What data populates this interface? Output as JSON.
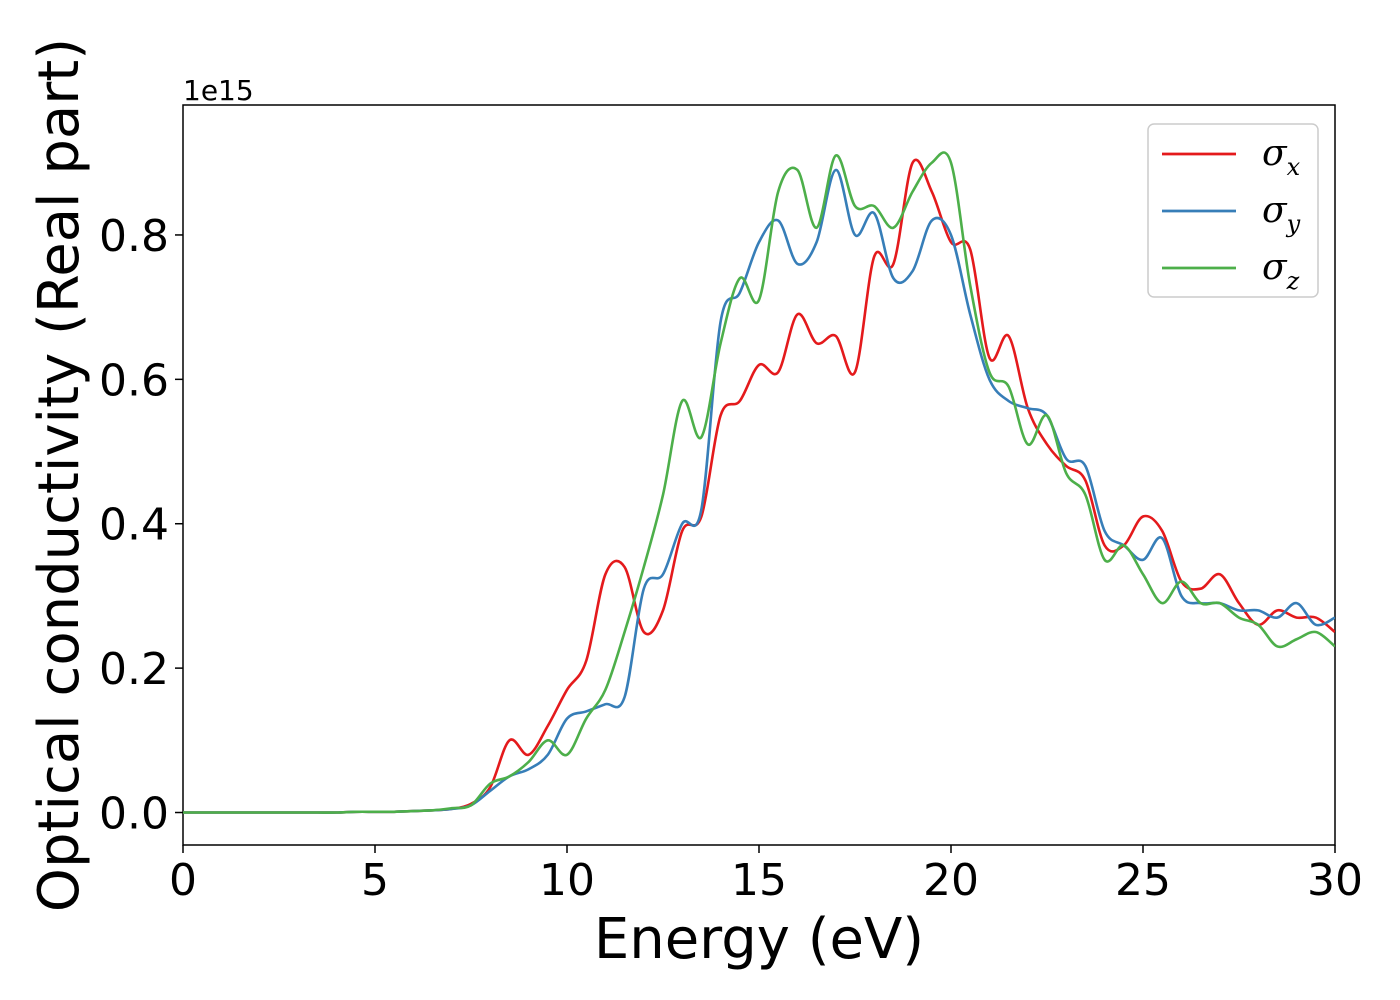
{
  "chart_data": {
    "type": "line",
    "title": "",
    "xlabel": "Energy (eV)",
    "ylabel": "Optical conductivity (Real part)",
    "y_offset_label": "1e15",
    "y_scale_factor": 1000000000000000.0,
    "xlim": [
      0,
      30
    ],
    "ylim": [
      -0.045,
      0.98
    ],
    "xticks": [
      0,
      5,
      10,
      15,
      20,
      25,
      30
    ],
    "yticks": [
      0.0,
      0.2,
      0.4,
      0.6,
      0.8
    ],
    "ytick_labels": [
      "0.0",
      "0.2",
      "0.4",
      "0.6",
      "0.8"
    ],
    "grid": false,
    "legend_position": "top-right",
    "x": [
      0,
      0.5,
      1,
      1.5,
      2,
      2.5,
      3,
      3.5,
      4,
      4.5,
      5,
      5.5,
      6,
      6.5,
      7,
      7.5,
      8,
      8.5,
      9,
      9.5,
      10,
      10.5,
      11,
      11.5,
      12,
      12.5,
      13,
      13.5,
      14,
      14.5,
      15,
      15.5,
      16,
      16.5,
      17,
      17.5,
      18,
      18.5,
      19,
      19.5,
      20,
      20.5,
      21,
      21.5,
      22,
      22.5,
      23,
      23.5,
      24,
      24.5,
      25,
      25.5,
      26,
      26.5,
      27,
      27.5,
      28,
      28.5,
      29,
      29.5,
      30
    ],
    "series": [
      {
        "name": "σ",
        "subscript": "x",
        "color": "#e41a1c",
        "values": [
          0,
          0,
          0,
          0,
          0,
          0,
          0,
          0,
          0,
          0.001,
          0.001,
          0.001,
          0.002,
          0.003,
          0.005,
          0.012,
          0.035,
          0.1,
          0.08,
          0.12,
          0.17,
          0.21,
          0.33,
          0.34,
          0.25,
          0.28,
          0.39,
          0.41,
          0.55,
          0.57,
          0.62,
          0.61,
          0.69,
          0.65,
          0.66,
          0.61,
          0.77,
          0.76,
          0.9,
          0.86,
          0.79,
          0.78,
          0.63,
          0.66,
          0.56,
          0.51,
          0.48,
          0.46,
          0.37,
          0.37,
          0.41,
          0.39,
          0.32,
          0.31,
          0.33,
          0.29,
          0.26,
          0.28,
          0.27,
          0.27,
          0.25
        ]
      },
      {
        "name": "σ",
        "subscript": "y",
        "color": "#377eb8",
        "values": [
          0,
          0,
          0,
          0,
          0,
          0,
          0,
          0,
          0,
          0.001,
          0.001,
          0.001,
          0.002,
          0.003,
          0.005,
          0.01,
          0.03,
          0.05,
          0.06,
          0.08,
          0.13,
          0.14,
          0.15,
          0.16,
          0.31,
          0.33,
          0.4,
          0.42,
          0.68,
          0.72,
          0.79,
          0.82,
          0.76,
          0.79,
          0.89,
          0.8,
          0.83,
          0.74,
          0.75,
          0.82,
          0.8,
          0.69,
          0.6,
          0.57,
          0.56,
          0.55,
          0.49,
          0.48,
          0.39,
          0.37,
          0.35,
          0.38,
          0.3,
          0.29,
          0.29,
          0.28,
          0.28,
          0.27,
          0.29,
          0.26,
          0.27
        ]
      },
      {
        "name": "σ",
        "subscript": "z",
        "color": "#4daf4a",
        "values": [
          0,
          0,
          0,
          0,
          0,
          0,
          0,
          0,
          0,
          0.001,
          0.001,
          0.001,
          0.002,
          0.003,
          0.006,
          0.01,
          0.04,
          0.05,
          0.07,
          0.1,
          0.08,
          0.13,
          0.17,
          0.25,
          0.34,
          0.44,
          0.57,
          0.52,
          0.65,
          0.74,
          0.71,
          0.86,
          0.89,
          0.81,
          0.91,
          0.84,
          0.84,
          0.81,
          0.86,
          0.9,
          0.9,
          0.73,
          0.61,
          0.59,
          0.51,
          0.55,
          0.47,
          0.44,
          0.35,
          0.37,
          0.33,
          0.29,
          0.32,
          0.29,
          0.29,
          0.27,
          0.26,
          0.23,
          0.24,
          0.25,
          0.23
        ]
      }
    ]
  }
}
